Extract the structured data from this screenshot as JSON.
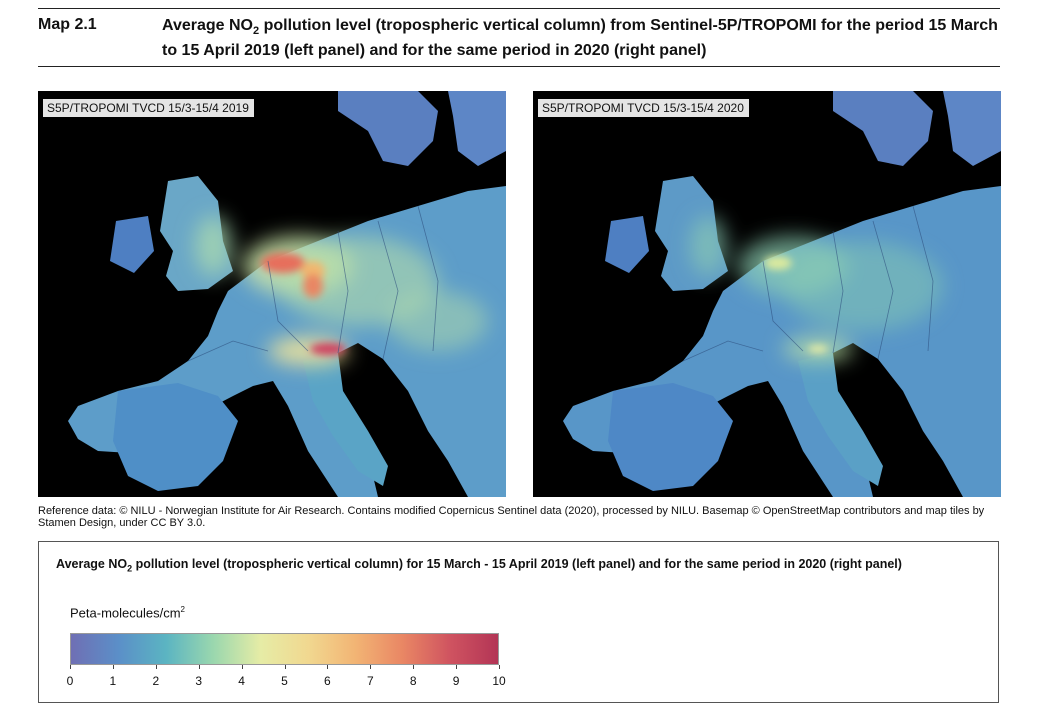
{
  "header": {
    "map_number": "Map 2.1",
    "title_before": "Average NO",
    "title_sub": "2",
    "title_after": " pollution level (tropospheric vertical column) from Sentinel-5P/TROPOMI for the period 15 March to 15 April 2019 (left panel) and for the same period in 2020 (right panel)"
  },
  "panels": [
    {
      "label": "S5P/TROPOMI TVCD 15/3-15/4 2019"
    },
    {
      "label": "S5P/TROPOMI TVCD 15/3-15/4 2020"
    }
  ],
  "reference": "Reference data: © NILU - Norwegian Institute for Air Research. Contains modified Copernicus Sentinel data (2020), processed by NILU. Basemap © OpenStreetMap contributors and map tiles by Stamen Design, under CC BY 3.0.",
  "legend": {
    "title_before": "Average NO",
    "title_sub": "2",
    "title_after": " pollution level (tropospheric vertical column) for 15 March - 15 April 2019 (left panel) and for the same period in 2020 (right panel)",
    "unit_main": "Peta-molecules/cm",
    "unit_sup": "2",
    "scale": {
      "min": 0,
      "max": 10,
      "ticks": [
        "0",
        "1",
        "2",
        "3",
        "4",
        "5",
        "6",
        "7",
        "8",
        "9",
        "10"
      ],
      "colors": [
        "#6f6fb4",
        "#5b8fc8",
        "#5bb4c2",
        "#9ad7ae",
        "#e6eca6",
        "#f1d890",
        "#f2b474",
        "#e98664",
        "#cf5360",
        "#b33556"
      ]
    }
  },
  "colors": {
    "background": "#000000",
    "land_base": "#4f82c6",
    "sea": "#000000"
  }
}
